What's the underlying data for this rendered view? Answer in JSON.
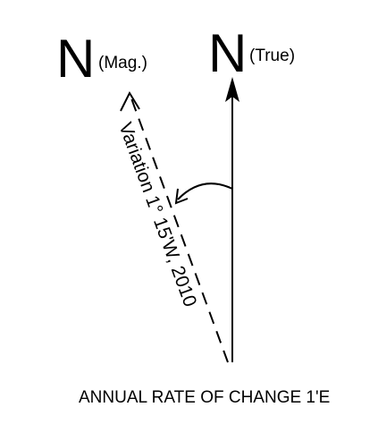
{
  "magnetic": {
    "letter": "N",
    "qualifier": "(Mag.)"
  },
  "true_north": {
    "letter": "N",
    "qualifier": "(True)"
  },
  "variation_label": "Variation 1° 15'W, 2010",
  "annual_rate": "ANNUAL RATE OF CHANGE 1'E"
}
